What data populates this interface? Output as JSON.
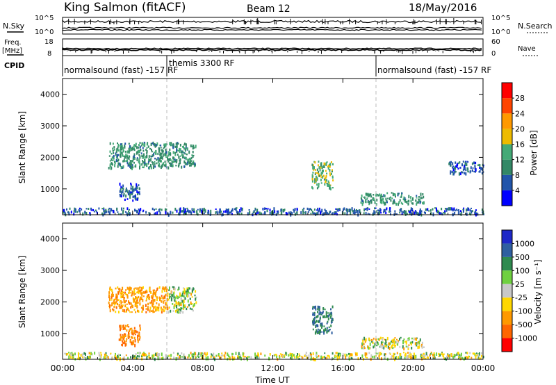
{
  "header": {
    "station": "King Salmon (fitACF)",
    "beam": "Beam 12",
    "date": "18/May/2016"
  },
  "noise_panel": {
    "left_label": "N.Sky",
    "right_label": "N.Search",
    "left_ticks": [
      "10^5",
      "10^0"
    ],
    "right_ticks": [
      "10^5",
      "10^0"
    ]
  },
  "freq_panel": {
    "left_label_top": "Freq.",
    "left_label_unit": "[MHz]",
    "left_ticks": [
      "18",
      "8"
    ],
    "right_label": "Nave",
    "right_ticks": [
      "60",
      "0"
    ]
  },
  "cpid": {
    "label": "CPID",
    "segments": [
      {
        "start_h": 0,
        "end_h": 6,
        "text": "normalsound (fast) -157 RF"
      },
      {
        "start_h": 6,
        "end_h": 18,
        "text": "themis 3300 RF"
      },
      {
        "start_h": 18,
        "end_h": 24,
        "text": "normalsound (fast) -157 RF"
      }
    ]
  },
  "x_axis": {
    "label": "Time UT",
    "ticks": [
      "00:00",
      "04:00",
      "08:00",
      "12:00",
      "16:00",
      "20:00",
      "00:00"
    ],
    "range_hours": [
      0,
      24
    ]
  },
  "colors": {
    "power": [
      "#0000ff",
      "#2255aa",
      "#338866",
      "#44aa77",
      "#eebb00",
      "#ff9900",
      "#ff4400",
      "#ff0000"
    ],
    "velocity": [
      "#1e28c8",
      "#2f5fa0",
      "#2f8a4f",
      "#6fd040",
      "#c8c8c8",
      "#ffd700",
      "#ff9900",
      "#ff6600",
      "#ff0000"
    ]
  },
  "chart_data": [
    {
      "type": "heatmap",
      "panel": "power",
      "ylabel": "Slant Range [km]",
      "yticks": [
        "1000",
        "2000",
        "3000",
        "4000"
      ],
      "ylim": [
        180,
        4500
      ],
      "xlim": [
        0,
        24
      ],
      "colorbar": {
        "label": "Power [dB]",
        "ticks": [
          "4",
          "8",
          "12",
          "16",
          "20",
          "24",
          "28"
        ],
        "range": [
          0,
          32
        ]
      },
      "regions": [
        {
          "t": [
            0.0,
            24.0
          ],
          "r": [
            220,
            420
          ],
          "level": 1
        },
        {
          "t": [
            2.6,
            7.6
          ],
          "r": [
            1700,
            2500
          ],
          "level": 2
        },
        {
          "t": [
            3.2,
            4.4
          ],
          "r": [
            650,
            1200
          ],
          "level": 1
        },
        {
          "t": [
            14.2,
            15.4
          ],
          "r": [
            1050,
            1900
          ],
          "level": 3
        },
        {
          "t": [
            17.0,
            20.6
          ],
          "r": [
            550,
            900
          ],
          "level": 2
        },
        {
          "t": [
            22.0,
            24.0
          ],
          "r": [
            1500,
            1900
          ],
          "level": 1
        }
      ]
    },
    {
      "type": "heatmap",
      "panel": "velocity",
      "ylabel": "Slant Range [km]",
      "yticks": [
        "1000",
        "2000",
        "3000",
        "4000"
      ],
      "ylim": [
        180,
        4500
      ],
      "xlim": [
        0,
        24
      ],
      "colorbar": {
        "label": "Velocity [m s⁻¹]",
        "ticks": [
          "1000",
          "500",
          "100",
          "25",
          "-25",
          "-100",
          "-500",
          "-1000"
        ],
        "range": [
          -1200,
          1200
        ]
      },
      "regions": [
        {
          "t": [
            0.0,
            24.0
          ],
          "r": [
            220,
            420
          ],
          "velocity": 0
        },
        {
          "t": [
            2.6,
            6.0
          ],
          "r": [
            1700,
            2500
          ],
          "velocity": -200
        },
        {
          "t": [
            3.2,
            4.4
          ],
          "r": [
            650,
            1300
          ],
          "velocity": -300
        },
        {
          "t": [
            6.0,
            7.6
          ],
          "r": [
            1700,
            2500
          ],
          "velocity": 30
        },
        {
          "t": [
            14.2,
            15.4
          ],
          "r": [
            1050,
            1900
          ],
          "velocity": 300
        },
        {
          "t": [
            17.0,
            20.6
          ],
          "r": [
            550,
            900
          ],
          "velocity": 0
        }
      ]
    }
  ]
}
